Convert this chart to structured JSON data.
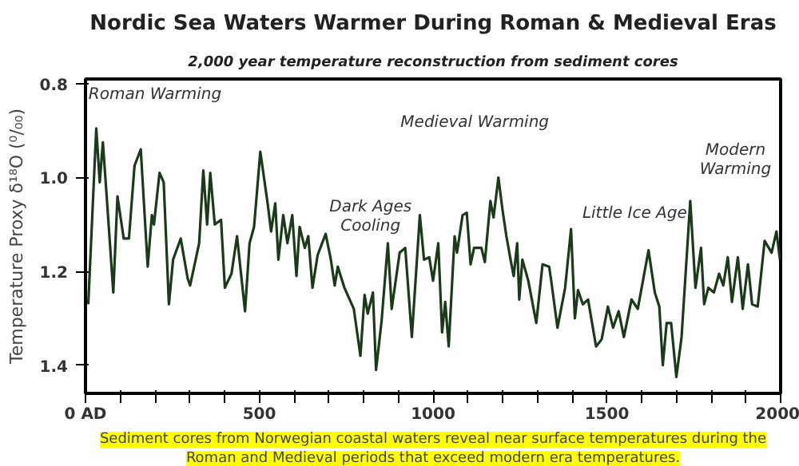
{
  "chart_data": {
    "type": "line",
    "title": "Nordic Sea Waters Warmer During Roman & Medieval Eras",
    "subtitle": "2,000 year temperature reconstruction from sediment cores",
    "ylabel": "Temperature Proxy δ¹⁸O (⁰/₀₀)",
    "xlim": [
      0,
      2000
    ],
    "xticks": [
      {
        "value": 0,
        "label": "0 AD"
      },
      {
        "value": 100,
        "label": null
      },
      {
        "value": 200,
        "label": null
      },
      {
        "value": 300,
        "label": null
      },
      {
        "value": 400,
        "label": null
      },
      500,
      {
        "value": 600,
        "label": null
      },
      {
        "value": 700,
        "label": null
      },
      {
        "value": 800,
        "label": null
      },
      {
        "value": 900,
        "label": null
      },
      1000,
      {
        "value": 1100,
        "label": null
      },
      {
        "value": 1200,
        "label": null
      },
      {
        "value": 1300,
        "label": null
      },
      {
        "value": 1400,
        "label": null
      },
      1500,
      {
        "value": 1600,
        "label": null
      },
      {
        "value": 1700,
        "label": null
      },
      {
        "value": 1800,
        "label": null
      },
      {
        "value": 1900,
        "label": null
      },
      2000
    ],
    "ylim": [
      1.46,
      0.79
    ],
    "yticks": [
      0.8,
      {
        "value": 1.0,
        "label": "1.0"
      },
      1.2,
      1.4
    ],
    "grid": false,
    "marker": "none",
    "line_style": "solid",
    "series": [
      {
        "color": "#1a3a1a",
        "x": [
          8,
          31,
          41,
          50,
          61,
          80,
          92,
          110,
          125,
          141,
          159,
          179,
          191,
          197,
          213,
          225,
          240,
          252,
          274,
          294,
          301,
          327,
          339,
          350,
          359,
          372,
          390,
          401,
          420,
          436,
          459,
          472,
          485,
          503,
          524,
          534,
          546,
          555,
          569,
          581,
          595,
          607,
          616,
          631,
          641,
          653,
          668,
          691,
          706,
          717,
          726,
          745,
          772,
          791,
          803,
          812,
          827,
          836,
          852,
          870,
          881,
          904,
          920,
          939,
          962,
          974,
          989,
          1000,
          1015,
          1026,
          1035,
          1045,
          1062,
          1069,
          1085,
          1097,
          1108,
          1118,
          1139,
          1149,
          1165,
          1174,
          1188,
          1200,
          1211,
          1223,
          1232,
          1242,
          1248,
          1257,
          1274,
          1297,
          1315,
          1334,
          1340,
          1358,
          1380,
          1397,
          1408,
          1417,
          1431,
          1446,
          1469,
          1485,
          1503,
          1518,
          1534,
          1549,
          1571,
          1589,
          1620,
          1638,
          1651,
          1661,
          1672,
          1685,
          1700,
          1715,
          1740,
          1755,
          1771,
          1780,
          1792,
          1808,
          1823,
          1835,
          1848,
          1860,
          1877,
          1891,
          1906,
          1918,
          1934,
          1954,
          1974,
          1988,
          1998
        ],
        "values": [
          1.27,
          0.895,
          1.01,
          0.925,
          1.04,
          1.245,
          1.04,
          1.13,
          1.13,
          0.975,
          0.94,
          1.19,
          1.08,
          1.1,
          0.99,
          1.01,
          1.27,
          1.175,
          1.13,
          1.215,
          1.23,
          1.14,
          0.985,
          1.1,
          0.99,
          1.1,
          1.09,
          1.235,
          1.205,
          1.125,
          1.285,
          1.14,
          1.105,
          0.945,
          1.055,
          1.115,
          1.055,
          1.175,
          1.08,
          1.14,
          1.08,
          1.21,
          1.105,
          1.15,
          1.125,
          1.235,
          1.165,
          1.12,
          1.175,
          1.23,
          1.19,
          1.235,
          1.28,
          1.38,
          1.25,
          1.29,
          1.245,
          1.41,
          1.305,
          1.14,
          1.28,
          1.16,
          1.15,
          1.34,
          1.08,
          1.175,
          1.17,
          1.22,
          1.14,
          1.33,
          1.265,
          1.36,
          1.125,
          1.16,
          1.08,
          1.075,
          1.185,
          1.15,
          1.15,
          1.18,
          1.05,
          1.085,
          1.0,
          1.07,
          1.125,
          1.175,
          1.21,
          1.14,
          1.26,
          1.175,
          1.22,
          1.31,
          1.185,
          1.19,
          1.22,
          1.32,
          1.235,
          1.11,
          1.3,
          1.24,
          1.27,
          1.26,
          1.36,
          1.345,
          1.275,
          1.32,
          1.285,
          1.34,
          1.26,
          1.28,
          1.155,
          1.245,
          1.275,
          1.4,
          1.31,
          1.31,
          1.425,
          1.34,
          1.05,
          1.235,
          1.15,
          1.27,
          1.235,
          1.245,
          1.205,
          1.23,
          1.17,
          1.265,
          1.17,
          1.28,
          1.185,
          1.27,
          1.275,
          1.135,
          1.16,
          1.115,
          1.175
        ]
      }
    ],
    "annotations": [
      "Roman Warming",
      "Medieval Warming",
      "Dark Ages\nCooling",
      "Little Ice Age",
      "Modern\nWarming",
      "Sediment cores from Norwegian coastal waters reveal near surface temperatures during the Roman and Medieval periods that exceed modern era temperatures."
    ]
  }
}
